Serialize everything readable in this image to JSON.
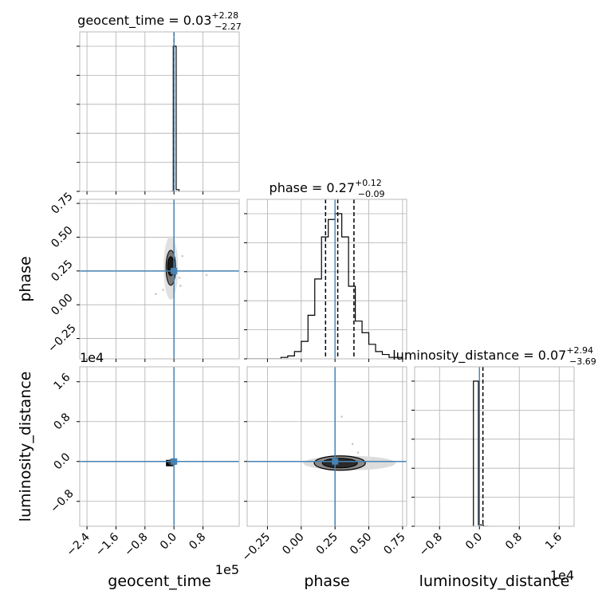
{
  "chart_data": {
    "type": "corner",
    "parameters": [
      "geocent_time",
      "phase",
      "luminosity_distance"
    ],
    "truth_color": "#4682b4",
    "truths": {
      "geocent_time": 0.0,
      "phase": 0.25,
      "luminosity_distance": 0.0
    },
    "titles": {
      "geocent_time": {
        "name": "geocent_time",
        "median": "0.03",
        "plus": "+2.28",
        "minus": "−2.27"
      },
      "phase": {
        "name": "phase",
        "median": "0.27",
        "plus": "+0.12",
        "minus": "−0.09"
      },
      "luminosity_distance": {
        "name": "luminosity_distance",
        "median": "0.07",
        "plus": "+2.94",
        "minus": "−3.69"
      }
    },
    "axes": {
      "geocent_time": {
        "label": "geocent_time",
        "range": [
          -26000,
          18000
        ],
        "ticks": [
          -24000,
          -16000,
          -8000,
          0,
          8000
        ],
        "tick_labels": [
          "−2.4",
          "−1.6",
          "−0.8",
          "0.0",
          "0.8"
        ],
        "offset": "1e5"
      },
      "phase": {
        "label": "phase",
        "range": [
          -0.4,
          0.78
        ],
        "ticks": [
          -0.25,
          0.0,
          0.25,
          0.5,
          0.75
        ],
        "tick_labels": [
          "−0.25",
          "0.00",
          "0.25",
          "0.50",
          "0.75"
        ],
        "offset": ""
      },
      "luminosity_distance": {
        "label": "luminosity_distance",
        "range": [
          -1.3,
          1.9
        ],
        "ticks": [
          -0.8,
          0.0,
          0.8,
          1.6
        ],
        "tick_labels": [
          "−0.8",
          "0.0",
          "0.8",
          "1.6"
        ],
        "offset": "1e4"
      }
    },
    "histograms": {
      "geocent_time": {
        "edges": [
          -1000,
          -200,
          600,
          1400
        ],
        "counts": [
          0.0,
          1.0,
          0.012
        ]
      },
      "phase": {
        "edges": [
          -0.4,
          -0.35,
          -0.3,
          -0.25,
          -0.2,
          -0.15,
          -0.1,
          -0.05,
          0.0,
          0.05,
          0.1,
          0.15,
          0.2,
          0.25,
          0.3,
          0.35,
          0.4,
          0.45,
          0.5,
          0.55,
          0.6,
          0.65,
          0.7,
          0.75
        ],
        "counts": [
          0,
          0,
          0,
          0,
          0,
          0.01,
          0.02,
          0.05,
          0.12,
          0.3,
          0.55,
          0.84,
          0.96,
          1.0,
          0.84,
          0.5,
          0.26,
          0.18,
          0.1,
          0.05,
          0.03,
          0.01,
          0.01
        ]
      },
      "luminosity_distance": {
        "edges": [
          -0.12,
          -0.02,
          0.08,
          0.18
        ],
        "counts": [
          1.0,
          0.01,
          0.0
        ]
      }
    },
    "quantiles": {
      "geocent_time": [
        0.03
      ],
      "phase": [
        0.18,
        0.27,
        0.39
      ],
      "luminosity_distance": [
        0.07
      ]
    },
    "scatter_points": {
      "phase_vs_geocent_time": [
        [
          -3000,
          0.11
        ],
        [
          -5000,
          0.08
        ],
        [
          9000,
          0.22
        ],
        [
          1800,
          0.14
        ],
        [
          -1200,
          0.32
        ],
        [
          2300,
          0.36
        ],
        [
          -800,
          0.18
        ],
        [
          1500,
          0.2
        ]
      ],
      "luminosity_distance_vs_phase": [
        [
          0.3,
          0.9
        ],
        [
          0.38,
          0.35
        ],
        [
          0.42,
          0.18
        ],
        [
          0.5,
          0.06
        ],
        [
          0.12,
          0.05
        ],
        [
          0.6,
          0.02
        ],
        [
          0.35,
          -0.03
        ],
        [
          0.55,
          -0.02
        ]
      ]
    },
    "grid": true
  }
}
